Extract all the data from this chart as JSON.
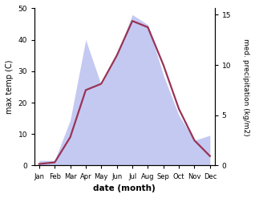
{
  "months": [
    "Jan",
    "Feb",
    "Mar",
    "Apr",
    "May",
    "Jun",
    "Jul",
    "Aug",
    "Sep",
    "Oct",
    "Nov",
    "Dec"
  ],
  "month_positions": [
    0,
    1,
    2,
    3,
    4,
    5,
    6,
    7,
    8,
    9,
    10,
    11
  ],
  "max_temp": [
    0.5,
    1.0,
    9.0,
    24.0,
    26.0,
    35.0,
    46.0,
    44.0,
    32.0,
    18.0,
    8.0,
    3.0
  ],
  "precipitation": [
    0.5,
    0.5,
    4.5,
    12.5,
    8.0,
    11.0,
    15.0,
    14.0,
    9.0,
    5.0,
    2.5,
    3.0
  ],
  "temp_color": "#993355",
  "area_color": "#b0b8ee",
  "xlabel": "date (month)",
  "ylabel_left": "max temp (C)",
  "ylabel_right": "med. precipitation (kg/m2)",
  "ylim_left": [
    0,
    50
  ],
  "ylim_right": [
    0,
    15.625
  ],
  "bg_color": "#ffffff"
}
